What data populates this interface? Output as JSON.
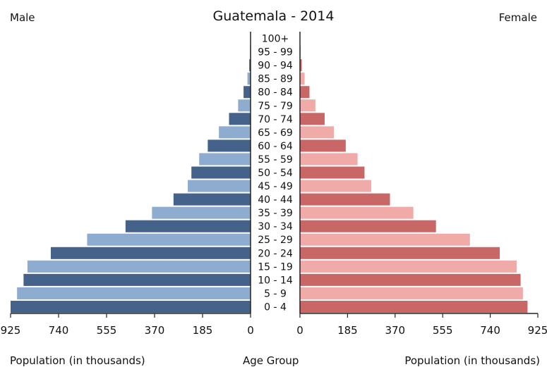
{
  "chart_data": {
    "type": "bar",
    "title": "Guatemala - 2014",
    "left_label": "Male",
    "right_label": "Female",
    "xlabel_left": "Population (in thousands)",
    "xlabel_center": "Age Group",
    "xlabel_right": "Population (in thousands)",
    "xlim": [
      0,
      925
    ],
    "x_ticks": [
      "925",
      "740",
      "555",
      "370",
      "185",
      "0"
    ],
    "x_ticks_right": [
      "0",
      "185",
      "370",
      "555",
      "740",
      "925"
    ],
    "categories": [
      "0 - 4",
      "5 - 9",
      "10 - 14",
      "15 - 19",
      "20 - 24",
      "25 - 29",
      "30 - 34",
      "35 - 39",
      "40 - 44",
      "45 - 49",
      "50 - 54",
      "55 - 59",
      "60 - 64",
      "65 - 69",
      "70 - 74",
      "75 - 79",
      "80 - 84",
      "85 - 89",
      "90 - 94",
      "95 - 99",
      "100+"
    ],
    "series": [
      {
        "name": "Male",
        "values": [
          925,
          900,
          875,
          860,
          770,
          630,
          482,
          380,
          297,
          242,
          228,
          198,
          165,
          122,
          83,
          48,
          27,
          12,
          5,
          2,
          1
        ]
      },
      {
        "name": "Female",
        "values": [
          885,
          867,
          858,
          843,
          777,
          661,
          529,
          441,
          350,
          277,
          251,
          224,
          178,
          132,
          96,
          60,
          37,
          18,
          7,
          3,
          1
        ]
      }
    ],
    "colors": {
      "male_dark": "#44628a",
      "male_light": "#8eabd0",
      "female_dark": "#c96767",
      "female_light": "#f0aaa8",
      "axis": "#222222"
    },
    "grid": false
  }
}
